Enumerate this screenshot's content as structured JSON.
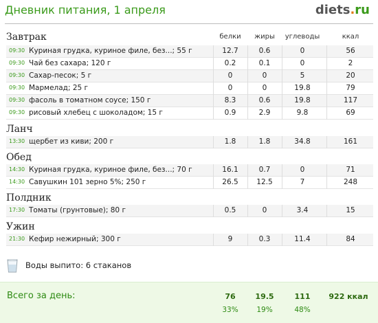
{
  "header": {
    "title": "Дневник питания, 1 апреля",
    "logo_main": "diets",
    "logo_dot": ".",
    "logo_tld": "ru"
  },
  "columns": {
    "protein": "белки",
    "fat": "жиры",
    "carbs": "углеводы",
    "kcal": "ккал"
  },
  "meals": [
    {
      "title": "Завтрак",
      "items": [
        {
          "time": "09:30",
          "name": "Куриная грудка, куриное филе, без...; 55 г",
          "protein": "12.7",
          "fat": "0.6",
          "carbs": "0",
          "kcal": "56"
        },
        {
          "time": "09:30",
          "name": "Чай без сахара; 120 г",
          "protein": "0.2",
          "fat": "0.1",
          "carbs": "0",
          "kcal": "2"
        },
        {
          "time": "09:30",
          "name": "Сахар-песок; 5 г",
          "protein": "0",
          "fat": "0",
          "carbs": "5",
          "kcal": "20"
        },
        {
          "time": "09:30",
          "name": "Мармелад; 25 г",
          "protein": "0",
          "fat": "0",
          "carbs": "19.8",
          "kcal": "79"
        },
        {
          "time": "09:30",
          "name": "фасоль в томатном соусе; 150 г",
          "protein": "8.3",
          "fat": "0.6",
          "carbs": "19.8",
          "kcal": "117"
        },
        {
          "time": "09:30",
          "name": "рисовый хлебец с шоколадом; 15 г",
          "protein": "0.9",
          "fat": "2.9",
          "carbs": "9.8",
          "kcal": "69"
        }
      ]
    },
    {
      "title": "Ланч",
      "items": [
        {
          "time": "13:30",
          "name": "щербет из киви; 200 г",
          "protein": "1.8",
          "fat": "1.8",
          "carbs": "34.8",
          "kcal": "161"
        }
      ]
    },
    {
      "title": "Обед",
      "items": [
        {
          "time": "14:30",
          "name": "Куриная грудка, куриное филе, без...; 70 г",
          "protein": "16.1",
          "fat": "0.7",
          "carbs": "0",
          "kcal": "71"
        },
        {
          "time": "14:30",
          "name": "Савушкин 101 зерно 5%; 250 г",
          "protein": "26.5",
          "fat": "12.5",
          "carbs": "7",
          "kcal": "248"
        }
      ]
    },
    {
      "title": "Полдник",
      "items": [
        {
          "time": "17:30",
          "name": "Томаты (грунтовые); 80 г",
          "protein": "0.5",
          "fat": "0",
          "carbs": "3.4",
          "kcal": "15"
        }
      ]
    },
    {
      "title": "Ужин",
      "items": [
        {
          "time": "21:30",
          "name": "Кефир нежирный; 300 г",
          "protein": "9",
          "fat": "0.3",
          "carbs": "11.4",
          "kcal": "84"
        }
      ]
    }
  ],
  "water": {
    "text": "Воды выпито: 6 стаканов",
    "icon": "glass-icon"
  },
  "totals": {
    "label": "Всего за день:",
    "protein": "76",
    "fat": "19.5",
    "carbs": "111",
    "kcal": "922 ккал",
    "protein_pct": "33%",
    "fat_pct": "19%",
    "carbs_pct": "48%"
  },
  "colors": {
    "accent_green": "#3a9a1a",
    "logo_orange": "#e07a10",
    "total_bg": "#eef9e6"
  }
}
